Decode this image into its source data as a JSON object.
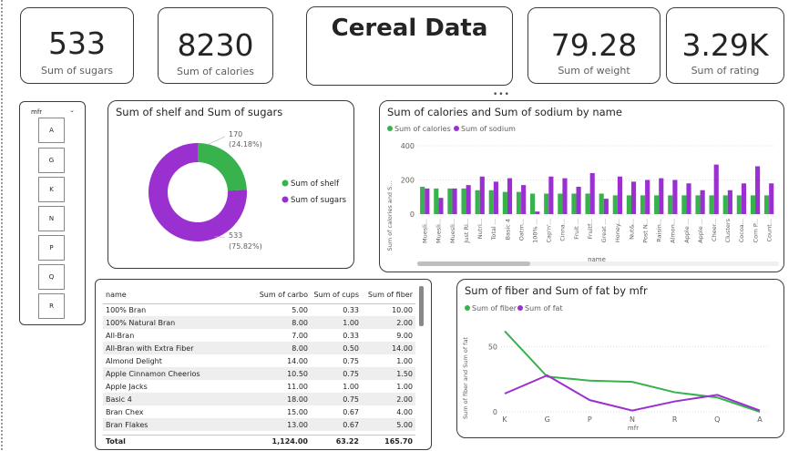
{
  "report_title": "Cereal Data",
  "kpis": [
    {
      "value": "533",
      "label": "Sum of sugars"
    },
    {
      "value": "8230",
      "label": "Sum of calories"
    },
    {
      "value": "79.28",
      "label": "Sum of weight"
    },
    {
      "value": "3.29K",
      "label": "Sum of rating"
    }
  ],
  "slicer": {
    "title": "mfr",
    "chevron_icon": "chevron-down-icon",
    "options": [
      "A",
      "G",
      "K",
      "N",
      "P",
      "Q",
      "R"
    ]
  },
  "more_options_icon": "ellipsis-icon",
  "donut": {
    "title": "Sum of shelf and Sum of sugars",
    "colors": {
      "shelf": "#37b24d",
      "sugars": "#9b30d0"
    },
    "chart_data": {
      "type": "pie",
      "labels": [
        "Sum of shelf",
        "Sum of sugars"
      ],
      "values": [
        170,
        533
      ],
      "percent_labels": [
        "(24.18%)",
        "(75.82%)"
      ],
      "value_labels": [
        "170",
        "533"
      ],
      "legend": "right"
    }
  },
  "bar_chart": {
    "title": "Sum of calories and Sum of sodium by name",
    "colors": {
      "calories": "#37b24d",
      "sodium": "#9b30d0"
    },
    "chart_data": {
      "type": "bar",
      "categories": [
        "Muesli...",
        "Muesli...",
        "Muesli...",
        "Just Ri...",
        "Nutri...",
        "Total ...",
        "Basic 4",
        "Oatm...",
        "100% ...",
        "Cap'n'...",
        "Cinna...",
        "Fruit ...",
        "Fruitf...",
        "Great ...",
        "Honey...",
        "Nut&...",
        "Post N...",
        "Raisin...",
        "Almon...",
        "Apple ...",
        "Apple ...",
        "Cheer...",
        "Clusters",
        "Cocoa...",
        "Corn P...",
        "Count..."
      ],
      "series": [
        {
          "name": "Sum of calories",
          "values": [
            160,
            150,
            150,
            150,
            140,
            140,
            130,
            130,
            120,
            120,
            120,
            120,
            120,
            120,
            110,
            110,
            110,
            110,
            110,
            110,
            110,
            110,
            110,
            110,
            110,
            110
          ]
        },
        {
          "name": "Sum of sodium",
          "values": [
            150,
            95,
            150,
            170,
            220,
            190,
            210,
            170,
            15,
            220,
            210,
            160,
            240,
            90,
            220,
            190,
            200,
            210,
            200,
            180,
            140,
            290,
            140,
            180,
            280,
            180
          ]
        }
      ],
      "xlabel": "name",
      "ylabel": "Sum of calories and S...",
      "ylim": [
        0,
        400
      ],
      "yticks": [
        0,
        200,
        400
      ],
      "legend": "top-left",
      "grid": true
    }
  },
  "table": {
    "columns": [
      "name",
      "Sum of carbo",
      "Sum of cups",
      "Sum of fiber"
    ],
    "rows": [
      [
        "100% Bran",
        "5.00",
        "0.33",
        "10.00"
      ],
      [
        "100% Natural Bran",
        "8.00",
        "1.00",
        "2.00"
      ],
      [
        "All-Bran",
        "7.00",
        "0.33",
        "9.00"
      ],
      [
        "All-Bran with Extra Fiber",
        "8.00",
        "0.50",
        "14.00"
      ],
      [
        "Almond Delight",
        "14.00",
        "0.75",
        "1.00"
      ],
      [
        "Apple Cinnamon Cheerios",
        "10.50",
        "0.75",
        "1.50"
      ],
      [
        "Apple Jacks",
        "11.00",
        "1.00",
        "1.00"
      ],
      [
        "Basic 4",
        "18.00",
        "0.75",
        "2.00"
      ],
      [
        "Bran Chex",
        "15.00",
        "0.67",
        "4.00"
      ],
      [
        "Bran Flakes",
        "13.00",
        "0.67",
        "5.00"
      ]
    ],
    "total": [
      "Total",
      "1,124.00",
      "63.22",
      "165.70"
    ]
  },
  "line_chart": {
    "title": "Sum of fiber and Sum of fat by mfr",
    "colors": {
      "fiber": "#37b24d",
      "fat": "#9b30d0"
    },
    "chart_data": {
      "type": "line",
      "x": [
        "K",
        "G",
        "P",
        "N",
        "R",
        "Q",
        "A"
      ],
      "series": [
        {
          "name": "Sum of fiber",
          "values": [
            62,
            27,
            24,
            23,
            15,
            11,
            0
          ]
        },
        {
          "name": "Sum of fat",
          "values": [
            14,
            28,
            9,
            1,
            8,
            13,
            1
          ]
        }
      ],
      "xlabel": "mfr",
      "ylabel": "Sum of fiber and Sum of fat",
      "ylim": [
        0,
        70
      ],
      "yticks": [
        0,
        50
      ],
      "legend": "top-left",
      "grid": true
    }
  }
}
